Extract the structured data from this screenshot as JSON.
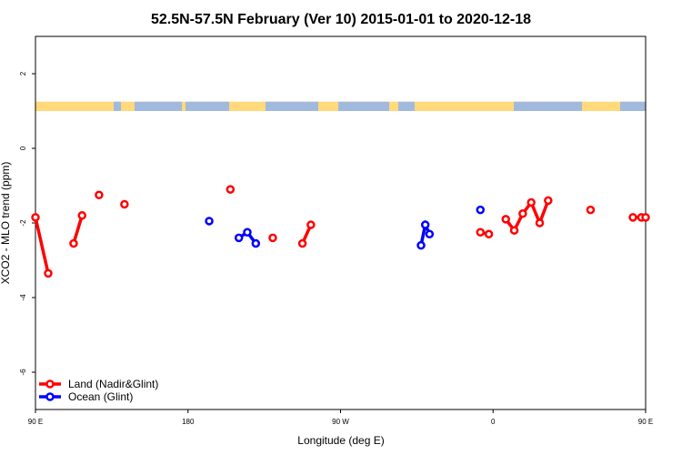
{
  "chart_data": {
    "type": "line",
    "title": "52.5N-57.5N February (Ver 10)   2015-01-01 to 2020-12-18",
    "xlabel": "Longitude (deg E)",
    "ylabel": "XCO2 - MLO trend (ppm)",
    "xlim": [
      90,
      450
    ],
    "ylim": [
      -7,
      3
    ],
    "x_ticks": [
      {
        "value": 90,
        "label": "90 E"
      },
      {
        "value": 180,
        "label": "180"
      },
      {
        "value": 270,
        "label": "90 W"
      },
      {
        "value": 360,
        "label": "0"
      },
      {
        "value": 450,
        "label": "90 E"
      },
      {
        "value": 540,
        "label": "180"
      }
    ],
    "y_ticks": [
      {
        "value": 2,
        "label": "2"
      },
      {
        "value": 0,
        "label": "0"
      },
      {
        "value": -2,
        "label": "-2"
      },
      {
        "value": -4,
        "label": "-4"
      },
      {
        "value": -6,
        "label": "-6"
      }
    ],
    "land_sea_strip": {
      "y_range": [
        1.0,
        1.25
      ],
      "land_color": "#FFD97A",
      "ocean_color": "#A2B9DE"
    },
    "series": [
      {
        "name": "Land (Nadir&Glint)",
        "color": "#FF0000",
        "segments": [
          [
            [
              90,
              -1.85
            ],
            [
              97.5,
              -3.35
            ]
          ],
          [
            [
              112.5,
              -2.55
            ],
            [
              117.5,
              -1.8
            ]
          ],
          [
            [
              127.5,
              -1.25
            ]
          ],
          [
            [
              142.5,
              -1.5
            ]
          ],
          [
            [
              205,
              -1.1
            ]
          ],
          [
            [
              230,
              -2.4
            ]
          ],
          [
            [
              247.5,
              -2.55
            ],
            [
              252.5,
              -2.05
            ]
          ],
          [
            [
              352.5,
              -2.25
            ],
            [
              357.5,
              -2.3
            ]
          ],
          [
            [
              367.5,
              -1.9
            ],
            [
              372.5,
              -2.2
            ],
            [
              377.5,
              -1.75
            ],
            [
              382.5,
              -1.45
            ],
            [
              387.5,
              -2.0
            ],
            [
              392.5,
              -1.4
            ]
          ],
          [
            [
              417.5,
              -1.65
            ]
          ],
          [
            [
              442.5,
              -1.85
            ],
            [
              447.5,
              -1.85
            ],
            [
              450,
              -1.85
            ]
          ]
        ]
      },
      {
        "name": "Ocean (Glint)",
        "color": "#0000FF",
        "segments": [
          [
            [
              192.5,
              -1.95
            ]
          ],
          [
            [
              210,
              -2.4
            ],
            [
              215,
              -2.25
            ],
            [
              220,
              -2.55
            ]
          ],
          [
            [
              317.5,
              -2.6
            ],
            [
              320,
              -2.05
            ],
            [
              322.5,
              -2.3
            ]
          ],
          [
            [
              352.5,
              -1.65
            ]
          ]
        ]
      }
    ],
    "legend": {
      "position": "bottom-left"
    }
  }
}
